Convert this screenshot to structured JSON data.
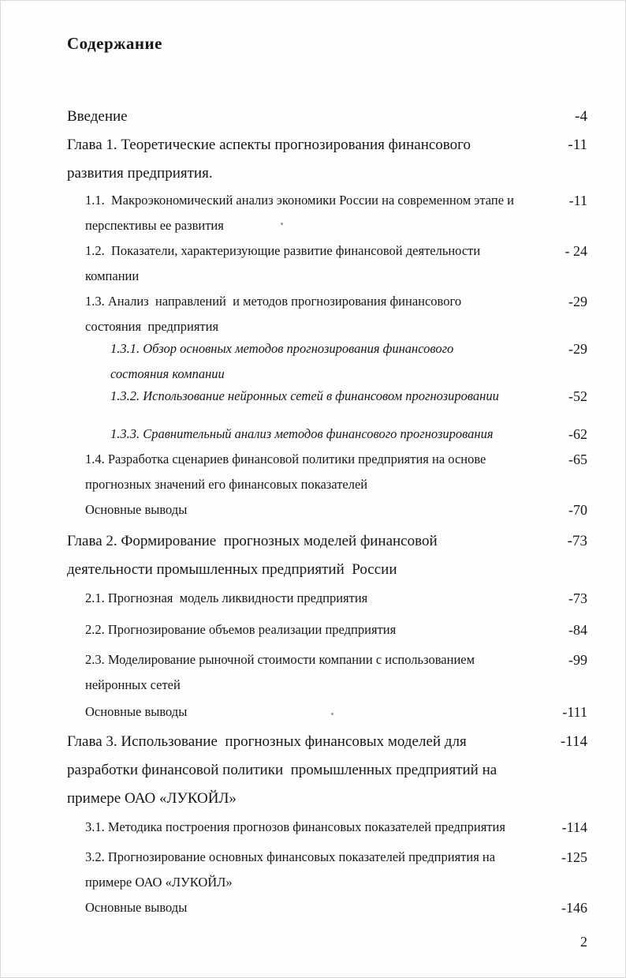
{
  "document": {
    "title": "Содержание",
    "footer_page_number": "2"
  },
  "toc": {
    "entries": [
      {
        "level": 0,
        "italic": false,
        "lines": [
          "Введение"
        ],
        "page": "-4"
      },
      {
        "level": 0,
        "italic": false,
        "lines": [
          "Глава 1. Теоретические аспекты прогнозирования финансового",
          "развития предприятия."
        ],
        "page": "-11"
      },
      {
        "level": 1,
        "italic": false,
        "lines": [
          "1.1.  Макроэкономический анализ экономики России на современном этапе и",
          "перспективы ее развития"
        ],
        "page": "-11"
      },
      {
        "level": 1,
        "italic": false,
        "lines": [
          "1.2.  Показатели, характеризующие развитие финансовой деятельности",
          "компании"
        ],
        "page": "- 24"
      },
      {
        "level": 1,
        "italic": false,
        "lines": [
          "1.3. Анализ  направлений  и методов прогнозирования финансового",
          "состояния  предприятия"
        ],
        "page": "-29"
      },
      {
        "level": 2,
        "italic": true,
        "lines": [
          "1.3.1. Обзор основных методов прогнозирования финансового",
          "состояния компании"
        ],
        "page": "-29"
      },
      {
        "level": 2,
        "italic": true,
        "lines": [
          "1.3.2. Использование нейронных сетей в финансовом прогнозировании"
        ],
        "page": "-52"
      },
      {
        "level": 2,
        "italic": true,
        "lines": [
          "1.3.3. Сравнительный анализ методов финансового прогнозирования"
        ],
        "page": "-62"
      },
      {
        "level": 1,
        "italic": false,
        "lines": [
          "1.4. Разработка сценариев финансовой политики предприятия на основе",
          "прогнозных значений его финансовых показателей"
        ],
        "page": "-65"
      },
      {
        "level": 1,
        "italic": false,
        "lines": [
          "Основные выводы"
        ],
        "page": "-70"
      },
      {
        "level": 0,
        "italic": false,
        "lines": [
          "Глава 2. Формирование  прогнозных моделей финансовой",
          "деятельности промышленных предприятий  России"
        ],
        "page": "-73"
      },
      {
        "level": 1,
        "italic": false,
        "lines": [
          "2.1. Прогнозная  модель ликвидности предприятия"
        ],
        "page": "-73"
      },
      {
        "level": 1,
        "italic": false,
        "lines": [
          "2.2. Прогнозирование объемов реализации предприятия"
        ],
        "page": "-84"
      },
      {
        "level": 1,
        "italic": false,
        "lines": [
          "2.3. Моделирование рыночной стоимости компании с использованием",
          "нейронных сетей"
        ],
        "page": "-99"
      },
      {
        "level": 1,
        "italic": false,
        "lines": [
          "Основные выводы"
        ],
        "page": "-111"
      },
      {
        "level": 0,
        "italic": false,
        "lines": [
          "Глава 3. Использование  прогнозных финансовых моделей для",
          "разработки финансовой политики  промышленных предприятий на",
          "примере ОАО «ЛУКОЙЛ»"
        ],
        "page": "-114"
      },
      {
        "level": 1,
        "italic": false,
        "lines": [
          "3.1. Методика построения прогнозов финансовых показателей предприятия"
        ],
        "page": "-114"
      },
      {
        "level": 1,
        "italic": false,
        "lines": [
          "3.2. Прогнозирование основных финансовых показателей предприятия на",
          "примере ОАО «ЛУКОЙЛ»"
        ],
        "page": "-125"
      },
      {
        "level": 1,
        "italic": false,
        "lines": [
          "Основные выводы"
        ],
        "page": "-146"
      }
    ]
  }
}
